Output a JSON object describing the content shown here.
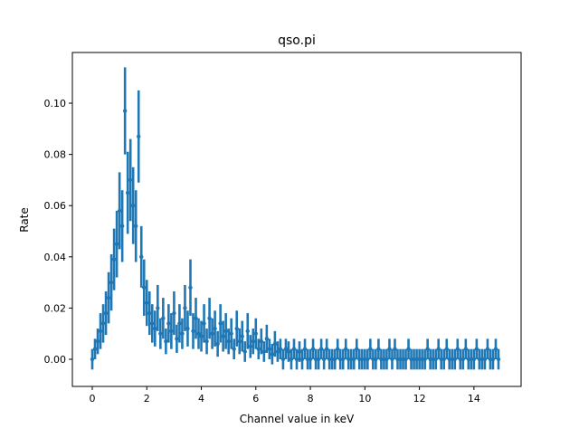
{
  "chart_data": {
    "type": "scatter",
    "style": "errorbar",
    "title": "qso.pi",
    "xlabel": "Channel value in keV",
    "ylabel": "Rate",
    "xlim": [
      -0.73,
      15.73
    ],
    "ylim": [
      -0.0106,
      0.1198
    ],
    "xticks": [
      0,
      2,
      4,
      6,
      8,
      10,
      12,
      14
    ],
    "xtick_labels": [
      "0",
      "2",
      "4",
      "6",
      "8",
      "10",
      "12",
      "14"
    ],
    "yticks": [
      0.0,
      0.02,
      0.04,
      0.06,
      0.08,
      0.1
    ],
    "ytick_labels": [
      "0.00",
      "0.02",
      "0.04",
      "0.06",
      "0.08",
      "0.10"
    ],
    "grid": false,
    "color": "#1f77b4",
    "x_start": 0.0,
    "x_step": 0.1,
    "values": [
      0.0,
      0.004,
      0.007,
      0.011,
      0.014,
      0.018,
      0.024,
      0.03,
      0.039,
      0.045,
      0.058,
      0.052,
      0.097,
      0.065,
      0.07,
      0.06,
      0.052,
      0.087,
      0.04,
      0.028,
      0.022,
      0.018,
      0.014,
      0.012,
      0.02,
      0.01,
      0.016,
      0.007,
      0.014,
      0.011,
      0.018,
      0.008,
      0.014,
      0.01,
      0.02,
      0.012,
      0.028,
      0.011,
      0.016,
      0.01,
      0.009,
      0.014,
      0.007,
      0.016,
      0.01,
      0.012,
      0.006,
      0.014,
      0.009,
      0.011,
      0.007,
      0.01,
      0.004,
      0.012,
      0.007,
      0.009,
      0.003,
      0.011,
      0.005,
      0.007,
      0.01,
      0.004,
      0.007,
      0.003,
      0.008,
      0.004,
      0.002,
      0.006,
      0.003,
      0.004,
      0.0,
      0.004,
      0.003,
      0.0,
      0.004,
      0.0,
      0.003,
      0.0,
      0.004,
      0.0,
      0.0,
      0.004,
      0.0,
      0.0,
      0.004,
      0.0,
      0.004,
      0.0,
      0.0,
      0.0,
      0.004,
      0.0,
      0.0,
      0.004,
      0.0,
      0.0,
      0.0,
      0.004,
      0.0,
      0.0,
      0.0,
      0.0,
      0.004,
      0.0,
      0.0,
      0.004,
      0.0,
      0.0,
      0.0,
      0.004,
      0.0,
      0.004,
      0.0,
      0.0,
      0.0,
      0.0,
      0.004,
      0.0,
      0.0,
      0.0,
      0.0,
      0.0,
      0.0,
      0.004,
      0.0,
      0.0,
      0.0,
      0.004,
      0.0,
      0.0,
      0.004,
      0.0,
      0.0,
      0.0,
      0.004,
      0.0,
      0.0,
      0.004,
      0.0,
      0.0,
      0.0,
      0.004,
      0.0,
      0.0,
      0.0,
      0.004,
      0.0,
      0.0,
      0.004,
      0.0
    ],
    "yerr": [
      0.004,
      0.004,
      0.005,
      0.007,
      0.0075,
      0.0085,
      0.01,
      0.011,
      0.012,
      0.013,
      0.015,
      0.014,
      0.017,
      0.016,
      0.016,
      0.015,
      0.014,
      0.018,
      0.012,
      0.011,
      0.009,
      0.0085,
      0.0075,
      0.007,
      0.009,
      0.006,
      0.008,
      0.005,
      0.0075,
      0.007,
      0.0085,
      0.0055,
      0.0075,
      0.006,
      0.009,
      0.007,
      0.011,
      0.007,
      0.008,
      0.006,
      0.006,
      0.0075,
      0.005,
      0.008,
      0.006,
      0.007,
      0.005,
      0.0075,
      0.006,
      0.007,
      0.005,
      0.006,
      0.004,
      0.007,
      0.005,
      0.006,
      0.004,
      0.007,
      0.0045,
      0.005,
      0.006,
      0.004,
      0.005,
      0.004,
      0.0055,
      0.004,
      0.004,
      0.005,
      0.004,
      0.004,
      0.004,
      0.004,
      0.004,
      0.004,
      0.004,
      0.004,
      0.004,
      0.004,
      0.004,
      0.004,
      0.004,
      0.004,
      0.004,
      0.004,
      0.004,
      0.004,
      0.004,
      0.004,
      0.004,
      0.004,
      0.004,
      0.004,
      0.004,
      0.004,
      0.004,
      0.004,
      0.004,
      0.004,
      0.004,
      0.004,
      0.004,
      0.004,
      0.004,
      0.004,
      0.004,
      0.004,
      0.004,
      0.004,
      0.004,
      0.004,
      0.004,
      0.004,
      0.004,
      0.004,
      0.004,
      0.004,
      0.004,
      0.004,
      0.004,
      0.004,
      0.004,
      0.004,
      0.004,
      0.004,
      0.004,
      0.004,
      0.004,
      0.004,
      0.004,
      0.004,
      0.004,
      0.004,
      0.004,
      0.004,
      0.004,
      0.004,
      0.004,
      0.004,
      0.004,
      0.004,
      0.004,
      0.004,
      0.004,
      0.004,
      0.004,
      0.004,
      0.004,
      0.004,
      0.004,
      0.004
    ]
  }
}
